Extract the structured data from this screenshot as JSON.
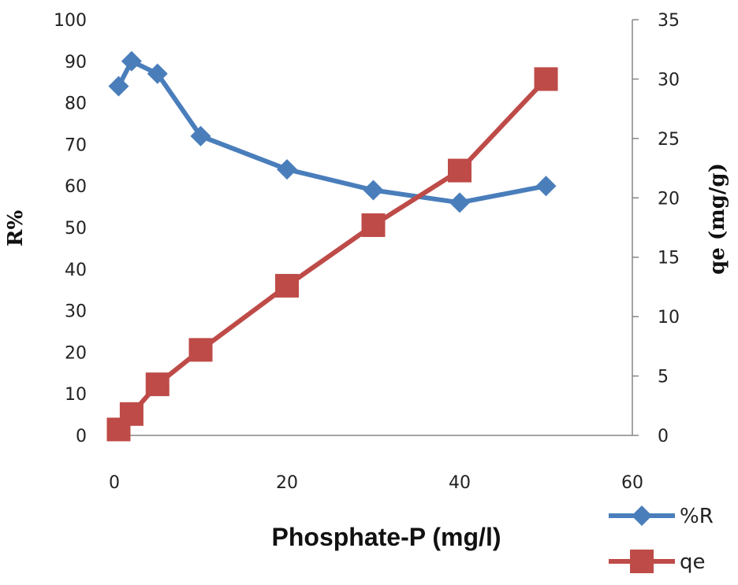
{
  "chart_data": {
    "type": "line",
    "xlabel": "Phosphate-P (mg/l)",
    "ylabel_left": "R%",
    "ylabel_right": "qe (mg/g)",
    "xlim": [
      0,
      60
    ],
    "ylim_left": [
      0,
      100
    ],
    "ylim_right": [
      0,
      35
    ],
    "x_ticks": [
      0,
      20,
      40,
      60
    ],
    "y_left_ticks": [
      0,
      10,
      20,
      30,
      40,
      50,
      60,
      70,
      80,
      90,
      100
    ],
    "y_right_ticks": [
      0,
      5,
      10,
      15,
      20,
      25,
      30,
      35
    ],
    "grid": false,
    "legend_position": "bottom-right",
    "series": [
      {
        "name": "%R",
        "axis": "left",
        "color": "#4a7ebb",
        "marker": "diamond",
        "x": [
          0.5,
          2,
          5,
          10,
          20,
          30,
          40,
          50
        ],
        "y": [
          84,
          90,
          87,
          72,
          64,
          59,
          56,
          60
        ]
      },
      {
        "name": "qe",
        "axis": "right",
        "color": "#be4b48",
        "marker": "square",
        "x": [
          0.5,
          2,
          5,
          10,
          20,
          30,
          40,
          50
        ],
        "y": [
          0.5,
          1.8,
          4.3,
          7.2,
          12.6,
          17.7,
          22.3,
          30
        ]
      }
    ]
  }
}
